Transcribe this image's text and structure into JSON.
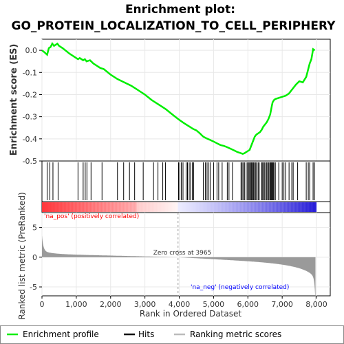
{
  "chart_data": {
    "type": "line",
    "title_line1": "Enrichment plot:",
    "title_line2": "GO_PROTEIN_LOCALIZATION_TO_CELL_PERIPHERY",
    "ylabel_top": "Enrichment score (ES)",
    "ylabel_bottom": "Ranked list metric (PreRanked)",
    "xlabel": "Rank in Ordered Dataset",
    "x_ticks": [
      "0",
      "1,000",
      "2,000",
      "3,000",
      "4,000",
      "5,000",
      "6,000",
      "7,000",
      "8,000"
    ],
    "x_tick_values": [
      0,
      1000,
      2000,
      3000,
      4000,
      5000,
      6000,
      7000,
      8000
    ],
    "es_y_ticks": [
      "0.0",
      "-0.1",
      "-0.2",
      "-0.3",
      "-0.4",
      "-0.5"
    ],
    "es_y_tick_values": [
      0.0,
      -0.1,
      -0.2,
      -0.3,
      -0.4,
      -0.5
    ],
    "es_ylim": [
      -0.5,
      0.05
    ],
    "metric_y_ticks": [
      "5",
      "0",
      "-5"
    ],
    "metric_y_tick_values": [
      5,
      0,
      -5
    ],
    "metric_ylim": [
      -6.5,
      7.5
    ],
    "xlim": [
      0,
      8400
    ],
    "n_genes": 7970,
    "zero_cross_label": "Zero cross at 3965",
    "zero_cross": 3965,
    "pos_label": "'na_pos' (positively correlated)",
    "neg_label": "'na_neg' (negatively correlated)",
    "es_curve": {
      "x": [
        0,
        80,
        150,
        200,
        250,
        300,
        350,
        400,
        450,
        500,
        600,
        800,
        1000,
        1050,
        1100,
        1200,
        1250,
        1300,
        1400,
        1500,
        1600,
        1700,
        1800,
        2000,
        2200,
        2400,
        2600,
        2800,
        3000,
        3200,
        3400,
        3600,
        3800,
        3965,
        4100,
        4200,
        4300,
        4400,
        4500,
        4600,
        4700,
        4800,
        4900,
        5000,
        5100,
        5200,
        5300,
        5400,
        5500,
        5600,
        5700,
        5800,
        5850,
        5900,
        5950,
        6000,
        6050,
        6100,
        6150,
        6200,
        6250,
        6300,
        6350,
        6400,
        6450,
        6500,
        6550,
        6600,
        6650,
        6700,
        6720,
        6760,
        6800,
        6900,
        7000,
        7100,
        7200,
        7300,
        7400,
        7500,
        7600,
        7700,
        7750,
        7800,
        7850,
        7900,
        7950
      ],
      "y": [
        0.0,
        -0.01,
        -0.02,
        0.01,
        0.015,
        0.03,
        0.02,
        0.025,
        0.03,
        0.02,
        0.01,
        -0.015,
        -0.035,
        -0.04,
        -0.035,
        -0.045,
        -0.04,
        -0.05,
        -0.045,
        -0.06,
        -0.07,
        -0.08,
        -0.085,
        -0.11,
        -0.13,
        -0.145,
        -0.16,
        -0.18,
        -0.2,
        -0.225,
        -0.245,
        -0.265,
        -0.29,
        -0.31,
        -0.325,
        -0.335,
        -0.345,
        -0.355,
        -0.362,
        -0.375,
        -0.39,
        -0.398,
        -0.405,
        -0.412,
        -0.42,
        -0.428,
        -0.432,
        -0.438,
        -0.445,
        -0.452,
        -0.46,
        -0.465,
        -0.468,
        -0.465,
        -0.46,
        -0.455,
        -0.45,
        -0.43,
        -0.41,
        -0.39,
        -0.38,
        -0.375,
        -0.37,
        -0.36,
        -0.345,
        -0.335,
        -0.325,
        -0.31,
        -0.29,
        -0.25,
        -0.235,
        -0.225,
        -0.22,
        -0.215,
        -0.21,
        -0.205,
        -0.195,
        -0.175,
        -0.155,
        -0.14,
        -0.145,
        -0.12,
        -0.09,
        -0.06,
        -0.04,
        0.005,
        0.0
      ]
    },
    "hits": [
      150,
      230,
      320,
      470,
      1050,
      1200,
      1260,
      1310,
      1430,
      1750,
      2200,
      2380,
      2550,
      2700,
      2950,
      3250,
      3380,
      3520,
      3600,
      3980,
      4020,
      4060,
      4110,
      4200,
      4240,
      4290,
      4330,
      4380,
      4420,
      4700,
      4760,
      4810,
      4850,
      4900,
      5000,
      5100,
      5150,
      5250,
      5400,
      5450,
      5550,
      5800,
      5830,
      5860,
      5900,
      5950,
      5990,
      6020,
      6050,
      6080,
      6100,
      6120,
      6150,
      6170,
      6200,
      6230,
      6260,
      6300,
      6330,
      6400,
      6420,
      6450,
      6480,
      6520,
      6550,
      6580,
      6610,
      6640,
      6660,
      6680,
      6700,
      6720,
      6740,
      6760,
      6800,
      6900,
      7000,
      7050,
      7100,
      7200,
      7280,
      7320,
      7450,
      7700,
      7760,
      7800,
      7900,
      7940
    ]
  },
  "legend": {
    "items": [
      {
        "label": "Enrichment profile",
        "color": "#00ee00"
      },
      {
        "label": "Hits",
        "color": "#000000"
      },
      {
        "label": "Ranking metric scores",
        "color": "#bbbbbb"
      }
    ]
  },
  "colors": {
    "es_line": "#00ee00",
    "pos_label": "#ff0000",
    "neg_label": "#0000ff",
    "metric_fill": "#9a9a9a",
    "grid": "#e8e8e8"
  }
}
